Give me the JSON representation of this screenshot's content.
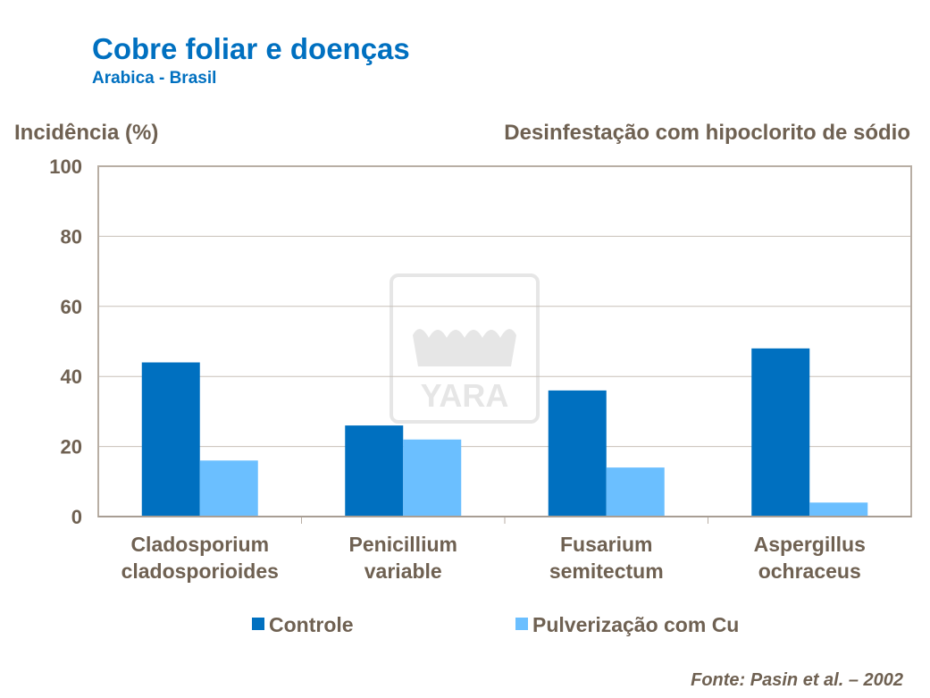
{
  "chart_data": {
    "type": "bar",
    "title": "Cobre foliar e doenças",
    "subtitle": "Arabica  - Brasil",
    "ylabel": "Incidência (%)",
    "annotation": "Desinfestação com hipoclorito de sódio",
    "source": "Fonte: Pasin et al. – 2002",
    "categories": [
      [
        "Cladosporium",
        "cladosporioides"
      ],
      [
        "Penicillium",
        "variable"
      ],
      [
        "Fusarium",
        "semitectum"
      ],
      [
        "Aspergillus",
        "ochraceus"
      ]
    ],
    "series": [
      {
        "name": "Controle",
        "color": "#0070C0",
        "values": [
          44,
          26,
          36,
          48
        ]
      },
      {
        "name": "Pulverização com Cu",
        "color": "#6BBFFF",
        "values": [
          16,
          22,
          14,
          4
        ]
      }
    ],
    "ylim": [
      0,
      100
    ],
    "yticks": [
      0,
      20,
      40,
      60,
      80,
      100
    ],
    "grid": true,
    "legend": "bottom",
    "watermark": "YARA"
  }
}
